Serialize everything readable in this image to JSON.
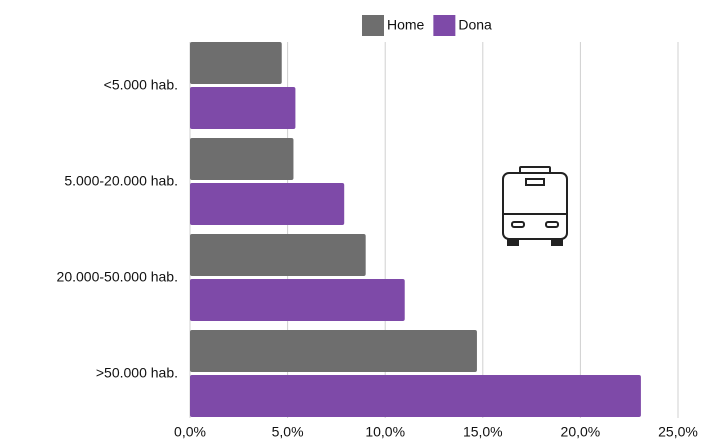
{
  "chart_data": {
    "type": "barh",
    "categories": [
      "<5.000 hab.",
      "5.000-20.000 hab.",
      "20.000-50.000 hab.",
      ">50.000 hab."
    ],
    "series": [
      {
        "name": "Home",
        "color": "#6e6e6e",
        "values": [
          4.7,
          5.3,
          9.0,
          14.7
        ]
      },
      {
        "name": "Dona",
        "color": "#7e4aa8",
        "values": [
          5.4,
          7.9,
          11.0,
          23.1
        ]
      }
    ],
    "xlim": [
      0,
      25
    ],
    "xticks": [
      {
        "value": 0,
        "label": "0,0%"
      },
      {
        "value": 5,
        "label": "5,0%"
      },
      {
        "value": 10,
        "label": "10,0%"
      },
      {
        "value": 15,
        "label": "15,0%"
      },
      {
        "value": 20,
        "label": "20,0%"
      },
      {
        "value": 25,
        "label": "25,0%"
      }
    ],
    "grid": true,
    "legend": "top"
  }
}
